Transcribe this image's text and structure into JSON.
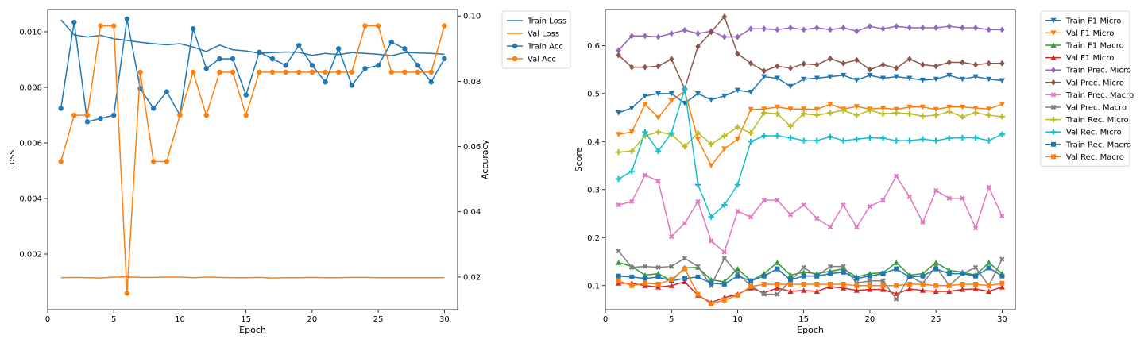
{
  "chart_data": [
    {
      "type": "line",
      "xlabel": "Epoch",
      "ylabel": "Loss",
      "ylabel_right": "Accuracy",
      "x": [
        1,
        2,
        3,
        4,
        5,
        6,
        7,
        8,
        9,
        10,
        11,
        12,
        13,
        14,
        15,
        16,
        17,
        18,
        19,
        20,
        21,
        22,
        23,
        24,
        25,
        26,
        27,
        28,
        29,
        30
      ],
      "xlim": [
        0,
        31
      ],
      "xticks": [
        0,
        5,
        10,
        15,
        20,
        25,
        30
      ],
      "ylim": [
        0,
        0.0108
      ],
      "yticks": [
        0.002,
        0.004,
        0.006,
        0.008,
        0.01
      ],
      "ytick_labels": [
        "0.002",
        "0.004",
        "0.006",
        "0.008",
        "0.010"
      ],
      "ylim_right": [
        0.01,
        0.102
      ],
      "yticks_right": [
        0.02,
        0.04,
        0.06,
        0.08,
        0.1
      ],
      "ytick_labels_right": [
        "0.02",
        "0.04",
        "0.06",
        "0.08",
        "0.10"
      ],
      "legend_position": "outside-top-right",
      "series": [
        {
          "name": "Train Loss",
          "axis": "left",
          "color": "#1f77b4",
          "marker": "none",
          "values": [
            0.01043,
            0.00989,
            0.00981,
            0.00987,
            0.00975,
            0.00969,
            0.00962,
            0.00957,
            0.00953,
            0.00957,
            0.00945,
            0.00929,
            0.00952,
            0.00935,
            0.00931,
            0.00923,
            0.00925,
            0.00927,
            0.00926,
            0.00915,
            0.00922,
            0.00918,
            0.00925,
            0.00922,
            0.00919,
            0.00914,
            0.00925,
            0.00924,
            0.00922,
            0.00919
          ]
        },
        {
          "name": "Val Loss",
          "axis": "left",
          "color": "#ff7f0e",
          "marker": "none",
          "values": [
            0.00115,
            0.00116,
            0.00115,
            0.00114,
            0.00117,
            0.00118,
            0.00116,
            0.00116,
            0.00117,
            0.00117,
            0.00115,
            0.00117,
            0.00116,
            0.00115,
            0.00115,
            0.00116,
            0.00114,
            0.00115,
            0.00115,
            0.00116,
            0.00115,
            0.00115,
            0.00116,
            0.00116,
            0.00115,
            0.00115,
            0.00115,
            0.00115,
            0.00115,
            0.00115
          ]
        },
        {
          "name": "Train Acc",
          "axis": "right",
          "color": "#1f77b4",
          "marker": "circle",
          "values": [
            0.0717,
            0.0981,
            0.0676,
            0.0686,
            0.0696,
            0.0991,
            0.0778,
            0.0717,
            0.0768,
            0.0697,
            0.0961,
            0.0839,
            0.0869,
            0.0869,
            0.0758,
            0.0889,
            0.0869,
            0.0849,
            0.091,
            0.0849,
            0.0798,
            0.09,
            0.0788,
            0.0839,
            0.0849,
            0.092,
            0.09,
            0.0849,
            0.0798,
            0.0869
          ]
        },
        {
          "name": "Val Acc",
          "axis": "right",
          "color": "#ff7f0e",
          "marker": "circle",
          "values": [
            0.0554,
            0.0696,
            0.0696,
            0.097,
            0.097,
            0.015,
            0.0828,
            0.0554,
            0.0554,
            0.0696,
            0.0828,
            0.0696,
            0.0828,
            0.0828,
            0.0696,
            0.0828,
            0.0828,
            0.0828,
            0.0828,
            0.0828,
            0.0828,
            0.0828,
            0.0828,
            0.097,
            0.097,
            0.0828,
            0.0828,
            0.0828,
            0.0828,
            0.097
          ]
        }
      ]
    },
    {
      "type": "line",
      "xlabel": "Epoch",
      "ylabel": "Score",
      "x": [
        1,
        2,
        3,
        4,
        5,
        6,
        7,
        8,
        9,
        10,
        11,
        12,
        13,
        14,
        15,
        16,
        17,
        18,
        19,
        20,
        21,
        22,
        23,
        24,
        25,
        26,
        27,
        28,
        29,
        30
      ],
      "xlim": [
        0,
        31
      ],
      "xticks": [
        0,
        5,
        10,
        15,
        20,
        25,
        30
      ],
      "ylim": [
        0.05,
        0.675
      ],
      "yticks": [
        0.1,
        0.2,
        0.3,
        0.4,
        0.5,
        0.6
      ],
      "ytick_labels": [
        "0.1",
        "0.2",
        "0.3",
        "0.4",
        "0.5",
        "0.6"
      ],
      "legend_position": "outside-top-right",
      "series": [
        {
          "name": "Train F1 Micro",
          "color": "#1f77b4",
          "marker": "triangle_down",
          "values": [
            0.46,
            0.47,
            0.495,
            0.5,
            0.5,
            0.48,
            0.5,
            0.487,
            0.495,
            0.507,
            0.503,
            0.535,
            0.532,
            0.515,
            0.53,
            0.532,
            0.535,
            0.538,
            0.528,
            0.538,
            0.532,
            0.535,
            0.532,
            0.528,
            0.53,
            0.538,
            0.53,
            0.535,
            0.53,
            0.527
          ]
        },
        {
          "name": "Val F1 Micro",
          "color": "#ff7f0e",
          "marker": "triangle_down",
          "values": [
            0.415,
            0.42,
            0.478,
            0.45,
            0.485,
            0.505,
            0.405,
            0.35,
            0.385,
            0.405,
            0.467,
            0.468,
            0.472,
            0.468,
            0.468,
            0.467,
            0.478,
            0.468,
            0.473,
            0.468,
            0.47,
            0.467,
            0.472,
            0.472,
            0.467,
            0.472,
            0.472,
            0.47,
            0.468,
            0.478
          ]
        },
        {
          "name": "Train F1 Macro",
          "color": "#2ca02c",
          "marker": "triangle_up",
          "values": [
            0.148,
            0.14,
            0.122,
            0.125,
            0.11,
            0.137,
            0.138,
            0.112,
            0.108,
            0.135,
            0.11,
            0.125,
            0.148,
            0.122,
            0.128,
            0.125,
            0.13,
            0.135,
            0.118,
            0.125,
            0.127,
            0.148,
            0.122,
            0.125,
            0.148,
            0.132,
            0.128,
            0.122,
            0.148,
            0.125
          ]
        },
        {
          "name": "Val F1 Micro",
          "color": "#d62728",
          "marker": "triangle_up",
          "values": [
            0.105,
            0.105,
            0.1,
            0.097,
            0.1,
            0.108,
            0.08,
            0.065,
            0.075,
            0.082,
            0.095,
            0.085,
            0.095,
            0.088,
            0.09,
            0.088,
            0.098,
            0.095,
            0.09,
            0.092,
            0.092,
            0.083,
            0.093,
            0.09,
            0.088,
            0.088,
            0.092,
            0.093,
            0.088,
            0.097
          ]
        },
        {
          "name": "Train Prec. Micro",
          "color": "#9467bd",
          "marker": "diamond",
          "values": [
            0.59,
            0.62,
            0.62,
            0.618,
            0.625,
            0.632,
            0.625,
            0.63,
            0.618,
            0.618,
            0.635,
            0.635,
            0.633,
            0.637,
            0.633,
            0.637,
            0.633,
            0.637,
            0.63,
            0.64,
            0.635,
            0.64,
            0.637,
            0.637,
            0.637,
            0.64,
            0.637,
            0.637,
            0.633,
            0.633
          ]
        },
        {
          "name": "Val Prec. Micro",
          "color": "#8c564b",
          "marker": "diamond",
          "values": [
            0.58,
            0.555,
            0.555,
            0.557,
            0.572,
            0.51,
            0.598,
            0.628,
            0.66,
            0.583,
            0.563,
            0.547,
            0.557,
            0.553,
            0.562,
            0.56,
            0.573,
            0.563,
            0.57,
            0.55,
            0.56,
            0.553,
            0.572,
            0.56,
            0.557,
            0.565,
            0.565,
            0.56,
            0.563,
            0.563
          ]
        },
        {
          "name": "Train Prec. Macro",
          "color": "#e377c2",
          "marker": "x",
          "values": [
            0.268,
            0.275,
            0.33,
            0.318,
            0.202,
            0.23,
            0.275,
            0.193,
            0.17,
            0.255,
            0.243,
            0.278,
            0.278,
            0.248,
            0.268,
            0.24,
            0.222,
            0.268,
            0.222,
            0.265,
            0.278,
            0.328,
            0.285,
            0.232,
            0.298,
            0.282,
            0.282,
            0.22,
            0.305,
            0.245
          ]
        },
        {
          "name": "Val Prec. Macro",
          "color": "#7f7f7f",
          "marker": "x",
          "values": [
            0.172,
            0.138,
            0.14,
            0.138,
            0.14,
            0.157,
            0.14,
            0.1,
            0.157,
            0.125,
            0.1,
            0.082,
            0.082,
            0.11,
            0.138,
            0.12,
            0.14,
            0.14,
            0.105,
            0.11,
            0.11,
            0.072,
            0.12,
            0.105,
            0.14,
            0.1,
            0.125,
            0.138,
            0.1,
            0.155
          ]
        },
        {
          "name": "Train Rec. Micro",
          "color": "#bcbd22",
          "marker": "plus",
          "values": [
            0.378,
            0.38,
            0.412,
            0.42,
            0.415,
            0.39,
            0.418,
            0.395,
            0.412,
            0.43,
            0.418,
            0.46,
            0.458,
            0.432,
            0.458,
            0.455,
            0.46,
            0.465,
            0.455,
            0.465,
            0.458,
            0.46,
            0.458,
            0.453,
            0.455,
            0.462,
            0.452,
            0.46,
            0.455,
            0.452
          ]
        },
        {
          "name": "Val Rec. Micro",
          "color": "#17becf",
          "marker": "plus",
          "values": [
            0.322,
            0.338,
            0.42,
            0.38,
            0.418,
            0.51,
            0.31,
            0.243,
            0.268,
            0.31,
            0.4,
            0.412,
            0.412,
            0.408,
            0.402,
            0.402,
            0.41,
            0.402,
            0.405,
            0.408,
            0.407,
            0.402,
            0.402,
            0.405,
            0.402,
            0.407,
            0.408,
            0.408,
            0.402,
            0.415
          ]
        },
        {
          "name": "Train Rec. Macro",
          "color": "#1f77b4",
          "marker": "square",
          "values": [
            0.12,
            0.118,
            0.115,
            0.118,
            0.11,
            0.115,
            0.118,
            0.105,
            0.103,
            0.12,
            0.11,
            0.12,
            0.135,
            0.112,
            0.12,
            0.12,
            0.125,
            0.128,
            0.115,
            0.12,
            0.125,
            0.135,
            0.118,
            0.12,
            0.135,
            0.125,
            0.125,
            0.12,
            0.137,
            0.12
          ]
        },
        {
          "name": "Val Rec. Macro",
          "color": "#ff7f0e",
          "marker": "square",
          "values": [
            0.11,
            0.1,
            0.105,
            0.103,
            0.113,
            0.135,
            0.082,
            0.062,
            0.07,
            0.08,
            0.098,
            0.103,
            0.103,
            0.103,
            0.103,
            0.103,
            0.103,
            0.103,
            0.1,
            0.1,
            0.1,
            0.1,
            0.103,
            0.103,
            0.1,
            0.1,
            0.103,
            0.103,
            0.1,
            0.105
          ]
        }
      ]
    }
  ]
}
